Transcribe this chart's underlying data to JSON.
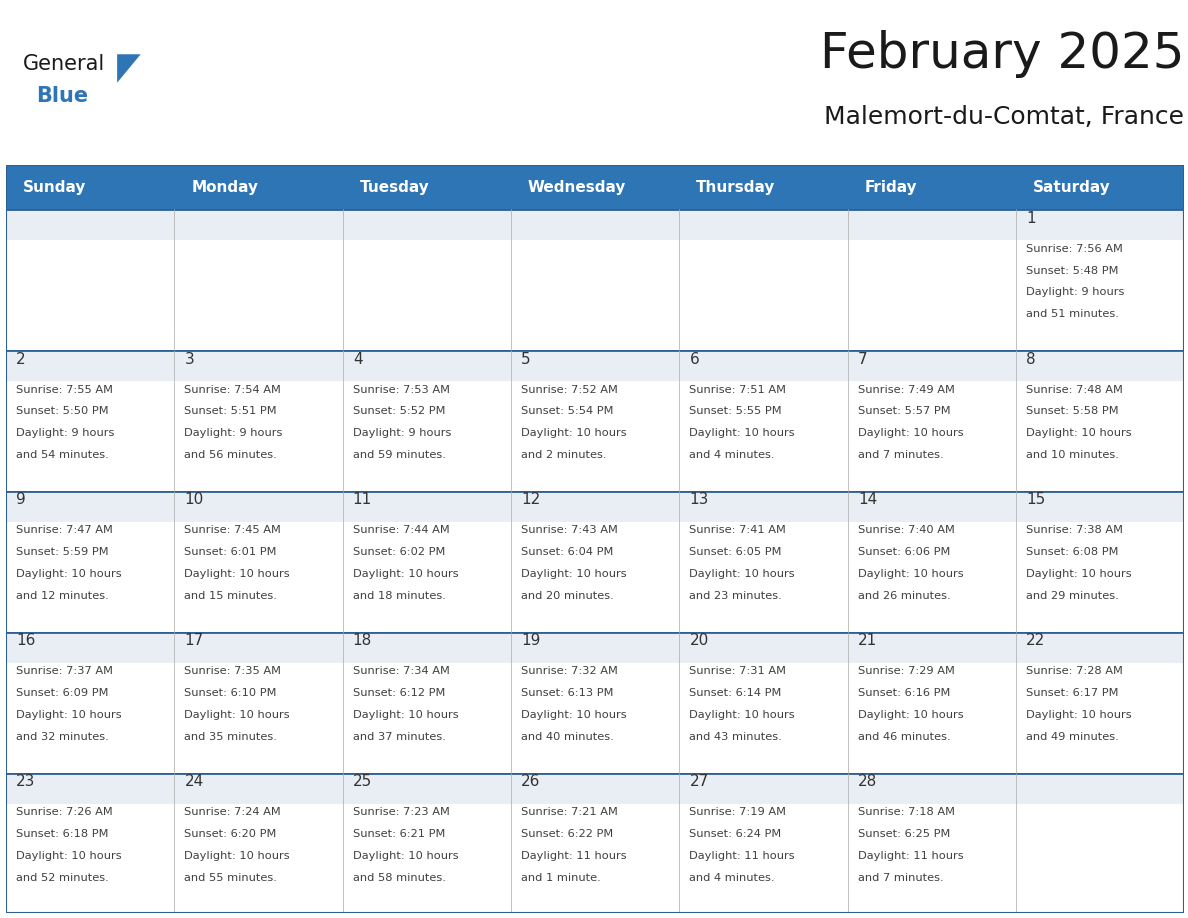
{
  "title": "February 2025",
  "subtitle": "Malemort-du-Comtat, France",
  "header_bg": "#2E75B6",
  "header_text_color": "#FFFFFF",
  "cell_day_bg": "#E8EEF4",
  "cell_info_bg": "#FFFFFF",
  "cell_border_top_color": "#2E6098",
  "cell_border_color": "#CCCCCC",
  "day_number_color": "#404040",
  "info_text_color": "#404040",
  "days_of_week": [
    "Sunday",
    "Monday",
    "Tuesday",
    "Wednesday",
    "Thursday",
    "Friday",
    "Saturday"
  ],
  "logo_general_color": "#1a1a1a",
  "logo_blue_color": "#2E75B6",
  "calendar": [
    [
      null,
      null,
      null,
      null,
      null,
      null,
      1
    ],
    [
      2,
      3,
      4,
      5,
      6,
      7,
      8
    ],
    [
      9,
      10,
      11,
      12,
      13,
      14,
      15
    ],
    [
      16,
      17,
      18,
      19,
      20,
      21,
      22
    ],
    [
      23,
      24,
      25,
      26,
      27,
      28,
      null
    ]
  ],
  "sun_data": {
    "1": {
      "rise": "7:56 AM",
      "set": "5:48 PM",
      "day": "9 hours",
      "day2": "and 51 minutes."
    },
    "2": {
      "rise": "7:55 AM",
      "set": "5:50 PM",
      "day": "9 hours",
      "day2": "and 54 minutes."
    },
    "3": {
      "rise": "7:54 AM",
      "set": "5:51 PM",
      "day": "9 hours",
      "day2": "and 56 minutes."
    },
    "4": {
      "rise": "7:53 AM",
      "set": "5:52 PM",
      "day": "9 hours",
      "day2": "and 59 minutes."
    },
    "5": {
      "rise": "7:52 AM",
      "set": "5:54 PM",
      "day": "10 hours",
      "day2": "and 2 minutes."
    },
    "6": {
      "rise": "7:51 AM",
      "set": "5:55 PM",
      "day": "10 hours",
      "day2": "and 4 minutes."
    },
    "7": {
      "rise": "7:49 AM",
      "set": "5:57 PM",
      "day": "10 hours",
      "day2": "and 7 minutes."
    },
    "8": {
      "rise": "7:48 AM",
      "set": "5:58 PM",
      "day": "10 hours",
      "day2": "and 10 minutes."
    },
    "9": {
      "rise": "7:47 AM",
      "set": "5:59 PM",
      "day": "10 hours",
      "day2": "and 12 minutes."
    },
    "10": {
      "rise": "7:45 AM",
      "set": "6:01 PM",
      "day": "10 hours",
      "day2": "and 15 minutes."
    },
    "11": {
      "rise": "7:44 AM",
      "set": "6:02 PM",
      "day": "10 hours",
      "day2": "and 18 minutes."
    },
    "12": {
      "rise": "7:43 AM",
      "set": "6:04 PM",
      "day": "10 hours",
      "day2": "and 20 minutes."
    },
    "13": {
      "rise": "7:41 AM",
      "set": "6:05 PM",
      "day": "10 hours",
      "day2": "and 23 minutes."
    },
    "14": {
      "rise": "7:40 AM",
      "set": "6:06 PM",
      "day": "10 hours",
      "day2": "and 26 minutes."
    },
    "15": {
      "rise": "7:38 AM",
      "set": "6:08 PM",
      "day": "10 hours",
      "day2": "and 29 minutes."
    },
    "16": {
      "rise": "7:37 AM",
      "set": "6:09 PM",
      "day": "10 hours",
      "day2": "and 32 minutes."
    },
    "17": {
      "rise": "7:35 AM",
      "set": "6:10 PM",
      "day": "10 hours",
      "day2": "and 35 minutes."
    },
    "18": {
      "rise": "7:34 AM",
      "set": "6:12 PM",
      "day": "10 hours",
      "day2": "and 37 minutes."
    },
    "19": {
      "rise": "7:32 AM",
      "set": "6:13 PM",
      "day": "10 hours",
      "day2": "and 40 minutes."
    },
    "20": {
      "rise": "7:31 AM",
      "set": "6:14 PM",
      "day": "10 hours",
      "day2": "and 43 minutes."
    },
    "21": {
      "rise": "7:29 AM",
      "set": "6:16 PM",
      "day": "10 hours",
      "day2": "and 46 minutes."
    },
    "22": {
      "rise": "7:28 AM",
      "set": "6:17 PM",
      "day": "10 hours",
      "day2": "and 49 minutes."
    },
    "23": {
      "rise": "7:26 AM",
      "set": "6:18 PM",
      "day": "10 hours",
      "day2": "and 52 minutes."
    },
    "24": {
      "rise": "7:24 AM",
      "set": "6:20 PM",
      "day": "10 hours",
      "day2": "and 55 minutes."
    },
    "25": {
      "rise": "7:23 AM",
      "set": "6:21 PM",
      "day": "10 hours",
      "day2": "and 58 minutes."
    },
    "26": {
      "rise": "7:21 AM",
      "set": "6:22 PM",
      "day": "11 hours",
      "day2": "and 1 minute."
    },
    "27": {
      "rise": "7:19 AM",
      "set": "6:24 PM",
      "day": "11 hours",
      "day2": "and 4 minutes."
    },
    "28": {
      "rise": "7:18 AM",
      "set": "6:25 PM",
      "day": "11 hours",
      "day2": "and 7 minutes."
    }
  }
}
